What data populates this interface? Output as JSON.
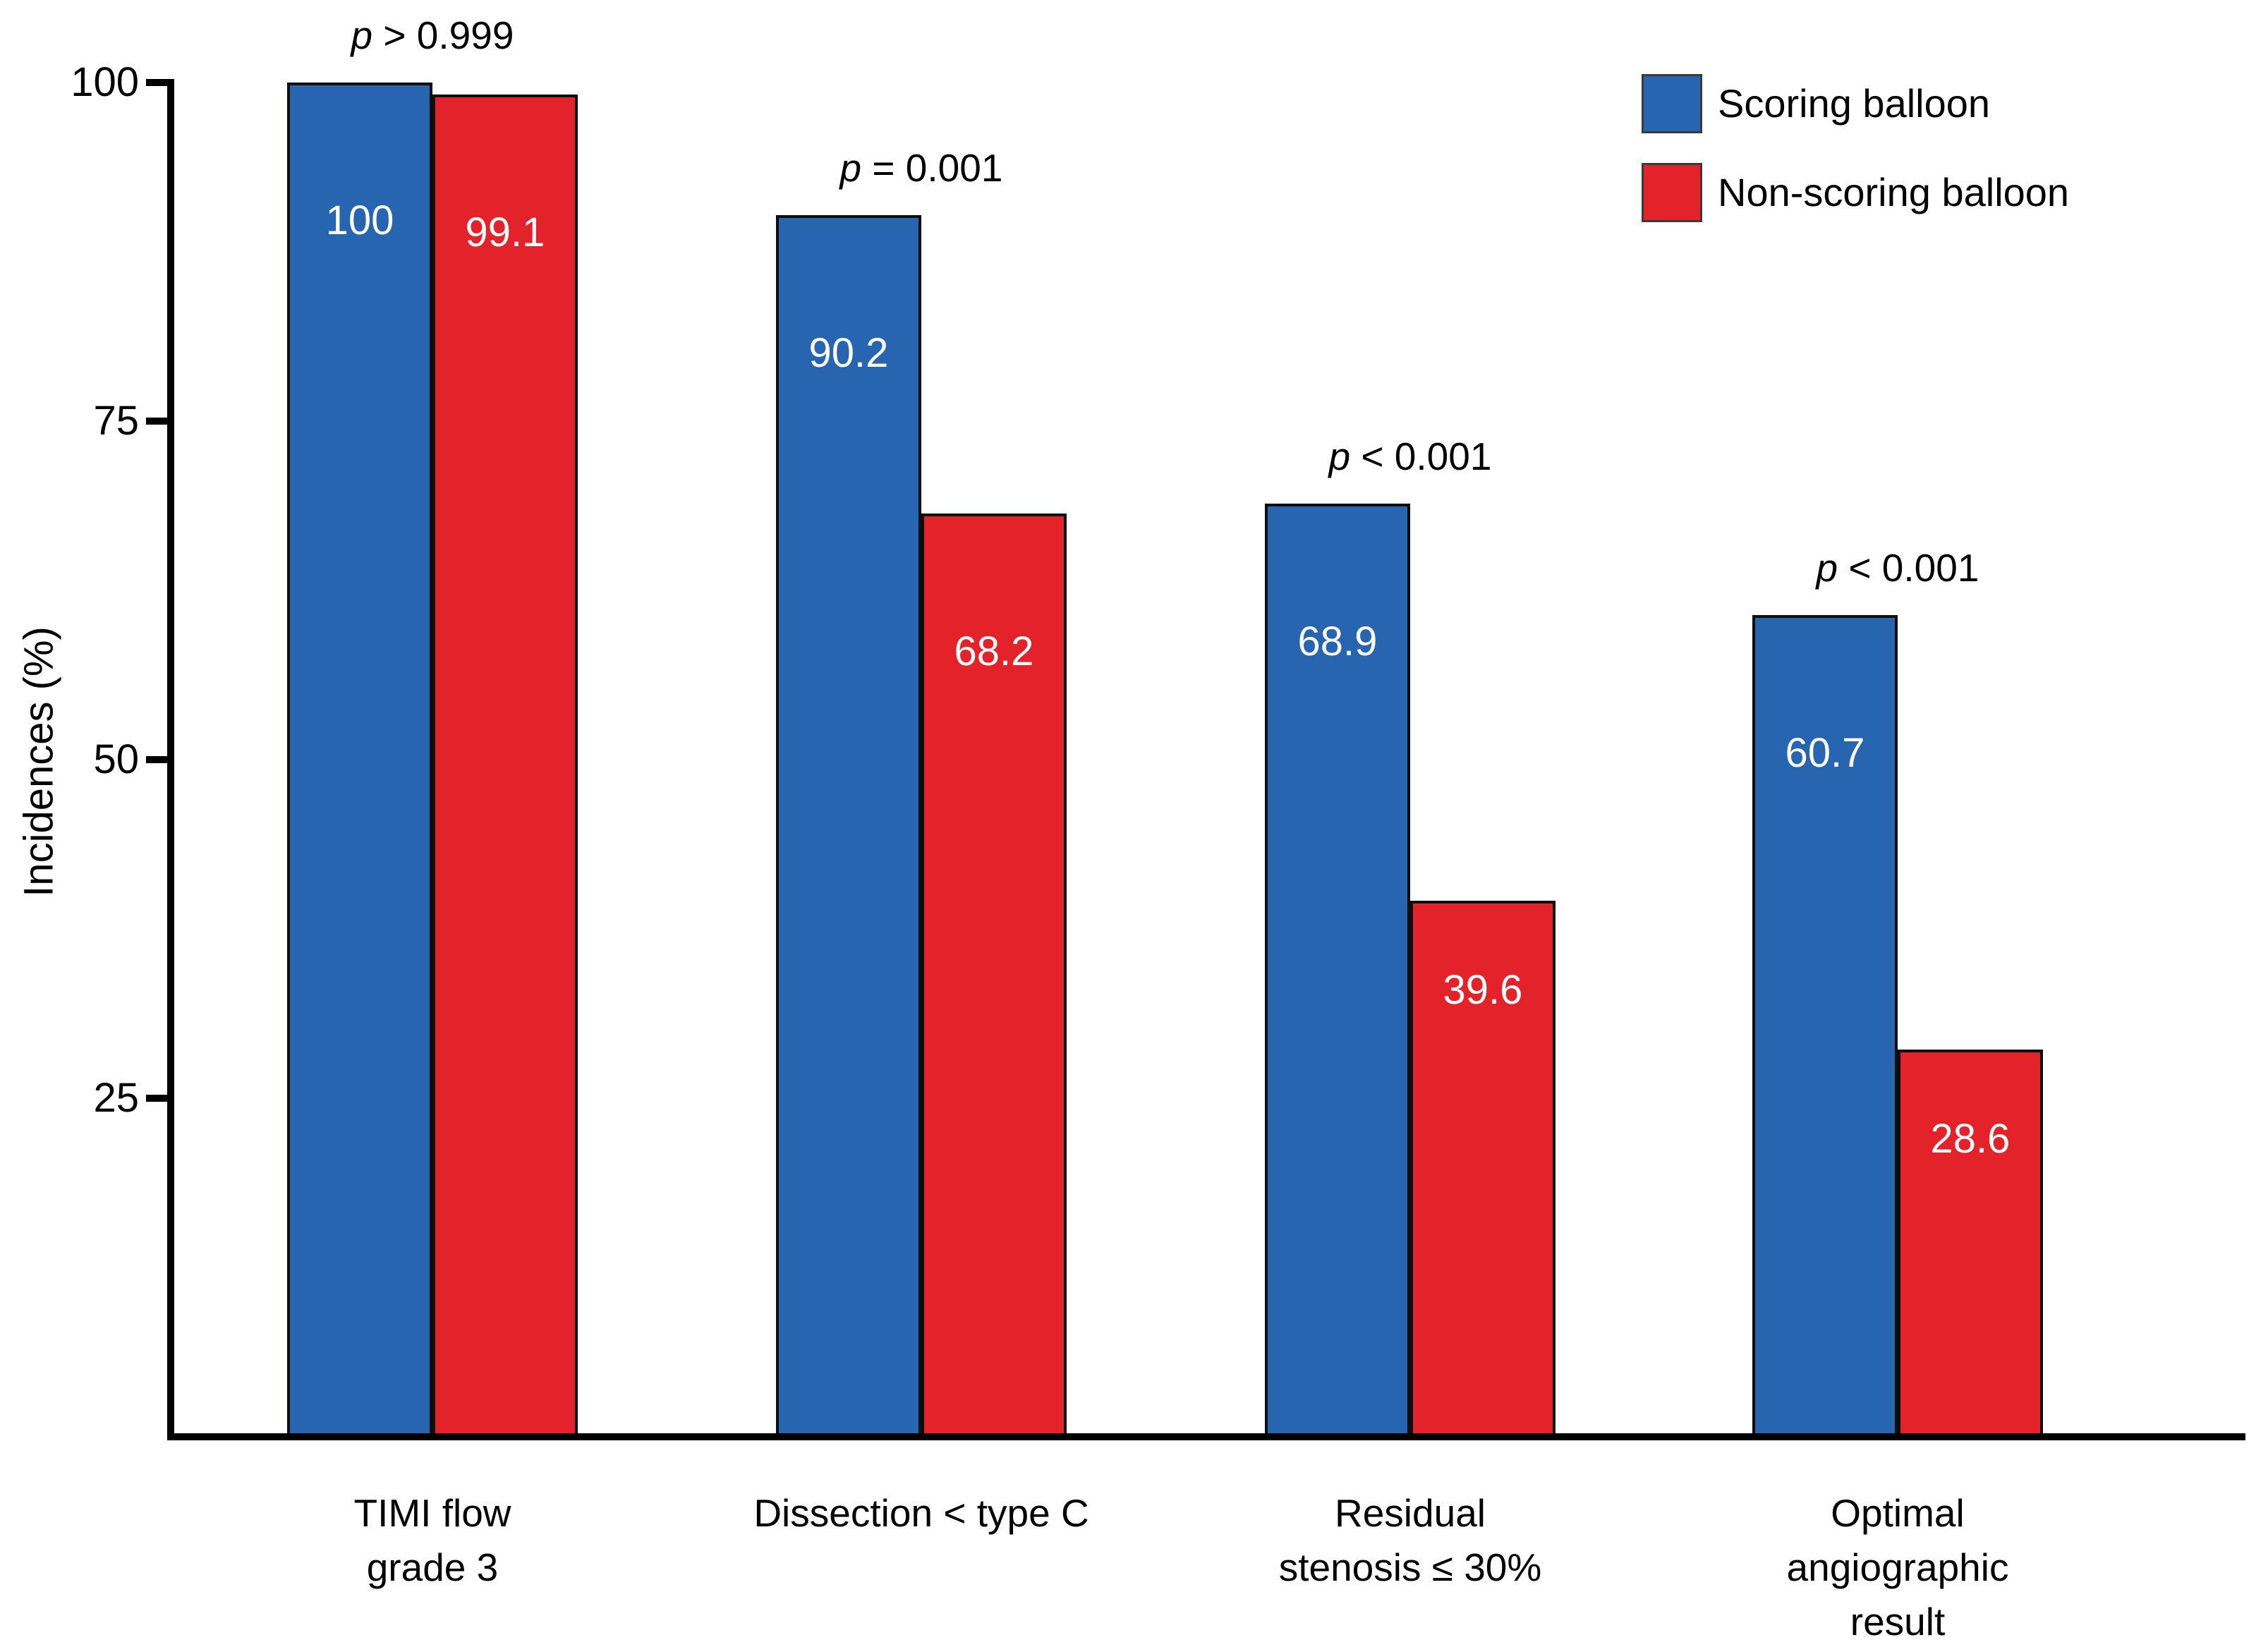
{
  "chart_data": {
    "type": "bar",
    "title": "",
    "ylabel": "Incidences (%)",
    "ylim": [
      0,
      100
    ],
    "yticks": [
      25,
      50,
      75,
      100
    ],
    "grid": false,
    "legend_position": "top-right",
    "categories": [
      {
        "lines": [
          "TIMI flow",
          "grade 3"
        ]
      },
      {
        "lines": [
          "Dissection < type C"
        ]
      },
      {
        "lines": [
          "Residual",
          "stenosis ≤ 30%"
        ]
      },
      {
        "lines": [
          "Optimal",
          "angiographic",
          "result"
        ]
      }
    ],
    "series": [
      {
        "name": "Scoring balloon",
        "color": "#2765b0",
        "values": [
          100,
          90.2,
          68.9,
          60.7
        ],
        "value_labels": [
          "100",
          "90.2",
          "68.9",
          "60.7"
        ]
      },
      {
        "name": "Non-scoring balloon",
        "color": "#e42229",
        "values": [
          99.1,
          68.2,
          39.6,
          28.6
        ],
        "value_labels": [
          "99.1",
          "68.2",
          "39.6",
          "28.6"
        ]
      }
    ],
    "p_values": [
      "p > 0.999",
      "p = 0.001",
      "p < 0.001",
      "p < 0.001"
    ],
    "colors": {
      "axis": "#000000",
      "value_label_text": "#ffffff",
      "bar_border": "#0d0d0d"
    }
  }
}
